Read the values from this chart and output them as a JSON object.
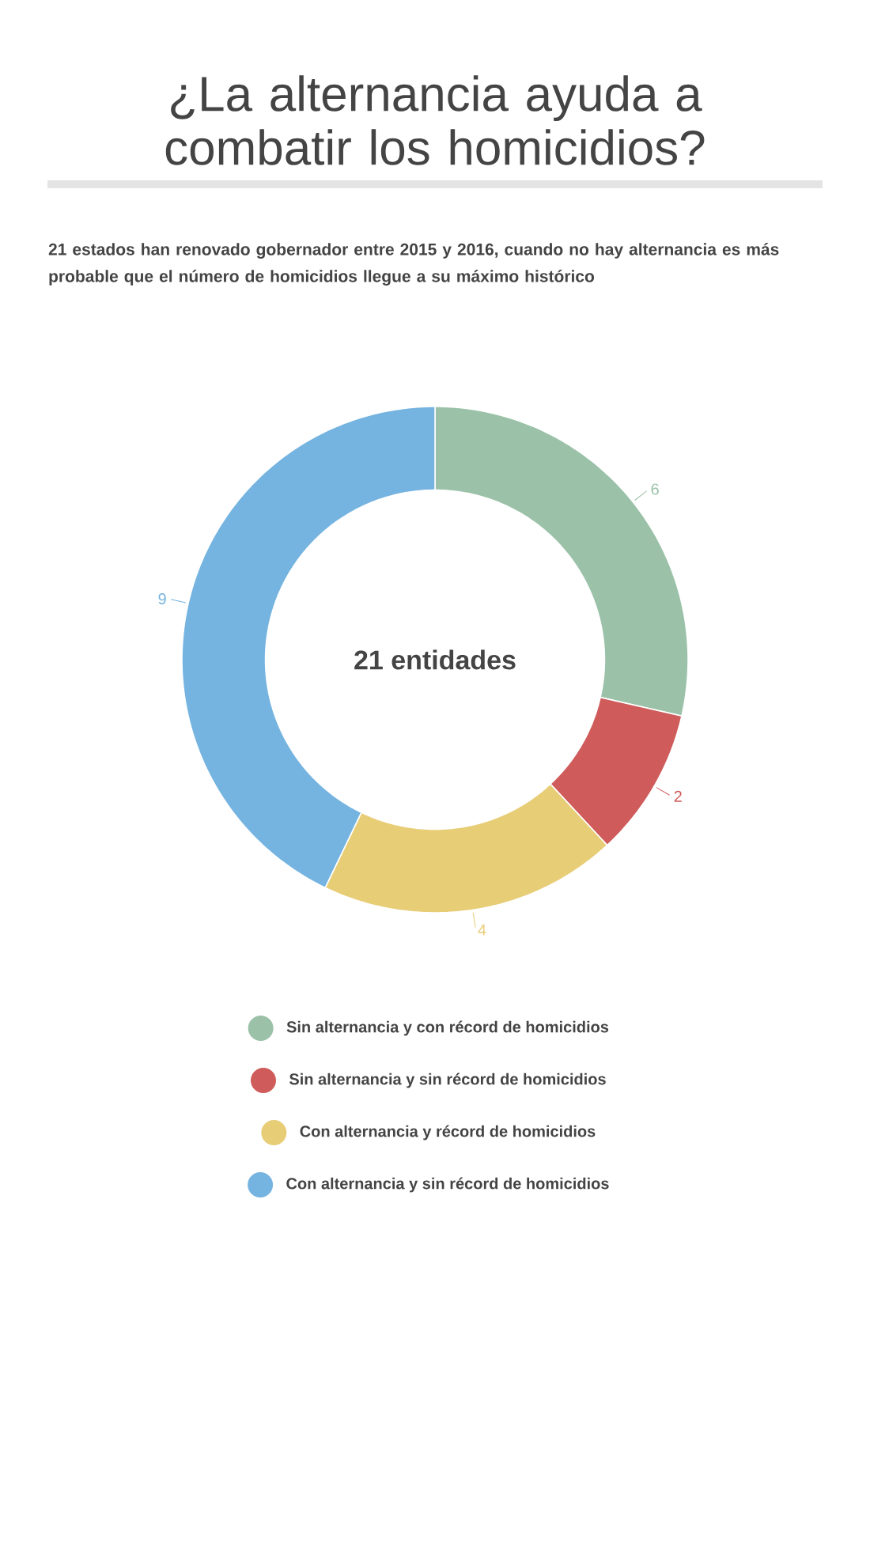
{
  "chart_data": {
    "type": "donut",
    "title": "¿La alternancia ayuda a combatir los homicidios?",
    "subtitle": "21 estados han renovado gobernador entre 2015 y 2016, cuando no hay alternancia es más probable que el número de homicidios llegue a su máximo histórico",
    "categories": [
      "Sin alternancia y con récord de homicidios",
      "Sin alternancia y sin récord de homicidios",
      "Con alternancia y récord de homicidios",
      "Con alternancia y sin récord de homicidios"
    ],
    "values": [
      6,
      2,
      4,
      9
    ],
    "colors": [
      "#9bc2a9",
      "#cf5b5b",
      "#e8cd77",
      "#75b4e0"
    ],
    "annotations": [
      "21 entidades"
    ],
    "data_labels": true,
    "legend": "bottom"
  }
}
